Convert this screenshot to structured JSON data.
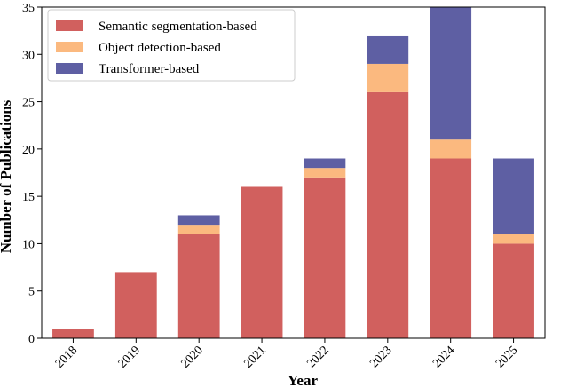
{
  "chart_data": {
    "type": "bar",
    "stacked": true,
    "categories": [
      "2018",
      "2019",
      "2020",
      "2021",
      "2022",
      "2023",
      "2024",
      "2025"
    ],
    "series": [
      {
        "name": "Semantic segmentation-based",
        "values": [
          1,
          7,
          11,
          16,
          17,
          26,
          19,
          10
        ],
        "color": "#d1605e"
      },
      {
        "name": "Object detection-based",
        "values": [
          0,
          0,
          1,
          0,
          1,
          3,
          2,
          1
        ],
        "color": "#fbb97f"
      },
      {
        "name": "Transformer-based",
        "values": [
          0,
          0,
          1,
          0,
          1,
          3,
          14,
          8
        ],
        "color": "#5e5fa3"
      }
    ],
    "xlabel": "Year",
    "ylabel": "Number of Publications",
    "ylim": [
      0,
      35
    ],
    "yticks": [
      0,
      5,
      10,
      15,
      20,
      25,
      30,
      35
    ],
    "grid": false,
    "legend_position": "top-left"
  }
}
